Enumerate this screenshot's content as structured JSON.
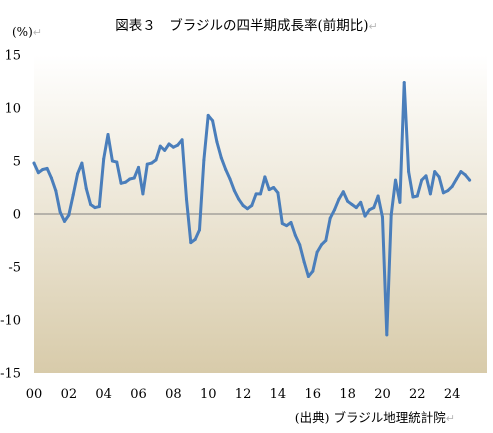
{
  "title": "図表３　ブラジルの四半期成長率(前期比)",
  "unit_label": "(%)",
  "return_mark": "↵",
  "source": "(出典) ブラジル地理統計院",
  "chart_data": {
    "type": "line",
    "title": "図表３　ブラジルの四半期成長率(前期比)",
    "ylabel": "(%)",
    "xlabel": "",
    "xlim": [
      2000,
      2026
    ],
    "ylim": [
      -15,
      15
    ],
    "y_ticks": [
      15,
      10,
      5,
      0,
      -5,
      -10,
      -15
    ],
    "y_tick_labels": [
      "15",
      "10",
      "5",
      "0",
      "-5",
      "-10",
      "-15"
    ],
    "x_ticks": [
      2000,
      2002,
      2004,
      2006,
      2008,
      2010,
      2012,
      2014,
      2016,
      2018,
      2020,
      2022,
      2024
    ],
    "x_tick_labels": [
      "00",
      "02",
      "04",
      "06",
      "08",
      "10",
      "12",
      "14",
      "16",
      "18",
      "20",
      "22",
      "24"
    ],
    "grid": false,
    "legend": "none",
    "series_color": "#4a7ebb",
    "background_gradient": [
      "#ffffff",
      "#d8cbaa"
    ],
    "series": [
      {
        "x": [
          2000.0,
          2000.25,
          2000.5,
          2000.75,
          2001.0,
          2001.25,
          2001.5,
          2001.75,
          2002.0,
          2002.25,
          2002.5,
          2002.75,
          2003.0,
          2003.25,
          2003.5,
          2003.75,
          2004.0,
          2004.25,
          2004.5,
          2004.75,
          2005.0,
          2005.25,
          2005.5,
          2005.75,
          2006.0,
          2006.25,
          2006.5,
          2006.75,
          2007.0,
          2007.25,
          2007.5,
          2007.75,
          2008.0,
          2008.25,
          2008.5,
          2008.75,
          2009.0,
          2009.25,
          2009.5,
          2009.75,
          2010.0,
          2010.25,
          2010.5,
          2010.75,
          2011.0,
          2011.25,
          2011.5,
          2011.75,
          2012.0,
          2012.25,
          2012.5,
          2012.75,
          2013.0,
          2013.25,
          2013.5,
          2013.75,
          2014.0,
          2014.25,
          2014.5,
          2014.75,
          2015.0,
          2015.25,
          2015.5,
          2015.75,
          2016.0,
          2016.25,
          2016.5,
          2016.75,
          2017.0,
          2017.25,
          2017.5,
          2017.75,
          2018.0,
          2018.25,
          2018.5,
          2018.75,
          2019.0,
          2019.25,
          2019.5,
          2019.75,
          2020.0,
          2020.25,
          2020.5,
          2020.75,
          2021.0,
          2021.25,
          2021.5,
          2021.75,
          2022.0,
          2022.25,
          2022.5,
          2022.75,
          2023.0,
          2023.25,
          2023.5,
          2023.75,
          2024.0,
          2024.25,
          2024.5,
          2024.75,
          2025.0
        ],
        "values": [
          4.8,
          3.9,
          4.2,
          4.3,
          3.4,
          2.2,
          0.2,
          -0.7,
          -0.1,
          1.8,
          3.8,
          4.8,
          2.4,
          0.9,
          0.6,
          0.7,
          5.2,
          7.5,
          5.0,
          4.9,
          2.9,
          3.0,
          3.3,
          3.4,
          4.4,
          1.9,
          4.7,
          4.8,
          5.1,
          6.4,
          6.0,
          6.6,
          6.3,
          6.5,
          7.0,
          1.4,
          -2.7,
          -2.4,
          -1.5,
          5.1,
          9.3,
          8.8,
          6.8,
          5.3,
          4.2,
          3.3,
          2.2,
          1.4,
          0.8,
          0.5,
          0.8,
          1.9,
          1.9,
          3.5,
          2.3,
          2.5,
          2.0,
          -0.9,
          -1.1,
          -0.8,
          -2.0,
          -2.9,
          -4.5,
          -5.9,
          -5.4,
          -3.6,
          -2.9,
          -2.5,
          -0.4,
          0.4,
          1.4,
          2.1,
          1.2,
          0.9,
          0.6,
          1.1,
          -0.2,
          0.4,
          0.6,
          1.7,
          -0.3,
          -11.4,
          -0.1,
          3.2,
          1.1,
          12.4,
          4.0,
          1.6,
          1.7,
          3.2,
          3.6,
          1.9,
          4.0,
          3.5,
          2.0,
          2.2,
          2.6,
          3.3,
          4.0,
          3.7,
          3.2
        ]
      }
    ]
  }
}
